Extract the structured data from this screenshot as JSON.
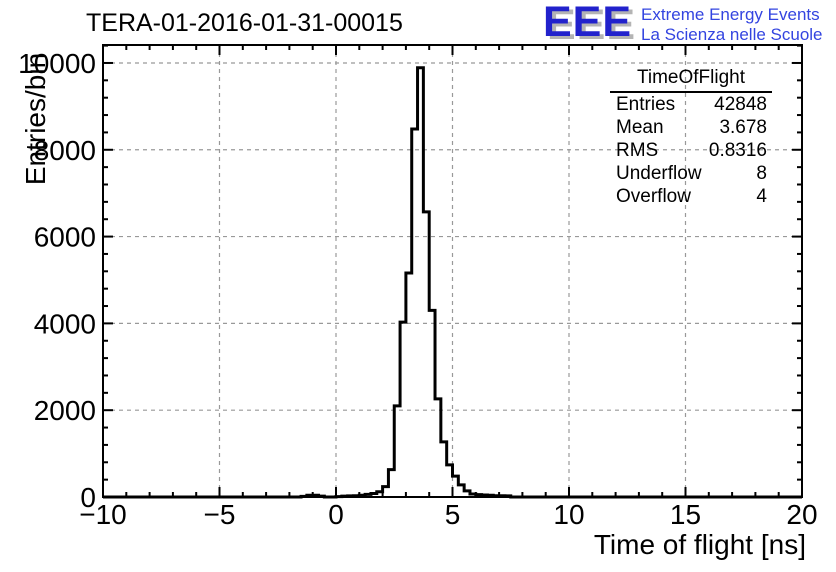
{
  "header": {
    "title": "TERA-01-2016-01-31-00015",
    "logo": {
      "acronym": "EEE",
      "line1": "Extreme Energy Events",
      "line2": "La Scienza nelle Scuole",
      "text_color": "#3344e0",
      "acronym_color": "#2222cc",
      "shadow_color": "#b4b4b4"
    }
  },
  "stats_box": {
    "title": "TimeOfFlight",
    "rows": [
      {
        "label": "Entries",
        "value": "42848"
      },
      {
        "label": "Mean",
        "value": "3.678"
      },
      {
        "label": "RMS",
        "value": "0.8316"
      },
      {
        "label": "Underflow",
        "value": "8"
      },
      {
        "label": "Overflow",
        "value": "4"
      }
    ]
  },
  "chart_data": {
    "type": "bar",
    "subtype": "step-histogram",
    "title": "TERA-01-2016-01-31-00015",
    "xlabel": "Time of flight [ns]",
    "ylabel": "Entries/bin",
    "xlim": [
      -10,
      20
    ],
    "ylim": [
      0,
      10414
    ],
    "x_major_ticks": [
      -10,
      -5,
      0,
      5,
      10,
      15,
      20
    ],
    "x_major_labels": [
      "−10",
      "−5",
      "0",
      "5",
      "10",
      "15",
      "20"
    ],
    "x_minor_step": 1,
    "y_major_ticks": [
      0,
      2000,
      4000,
      6000,
      8000,
      10000
    ],
    "y_major_labels": [
      "0",
      "2000",
      "4000",
      "6000",
      "8000",
      "10000"
    ],
    "y_minor_step": 400,
    "grid": true,
    "grid_color": "#999999",
    "line_color": "#000000",
    "bin_width": 0.25,
    "bin_start": -1.5,
    "counts": [
      15,
      40,
      40,
      20,
      0,
      0,
      10,
      20,
      25,
      30,
      40,
      60,
      80,
      120,
      240,
      630,
      2100,
      4030,
      5160,
      8480,
      9890,
      6570,
      4300,
      2260,
      1270,
      740,
      480,
      280,
      140,
      70,
      55,
      45,
      40,
      30,
      30,
      25
    ]
  }
}
